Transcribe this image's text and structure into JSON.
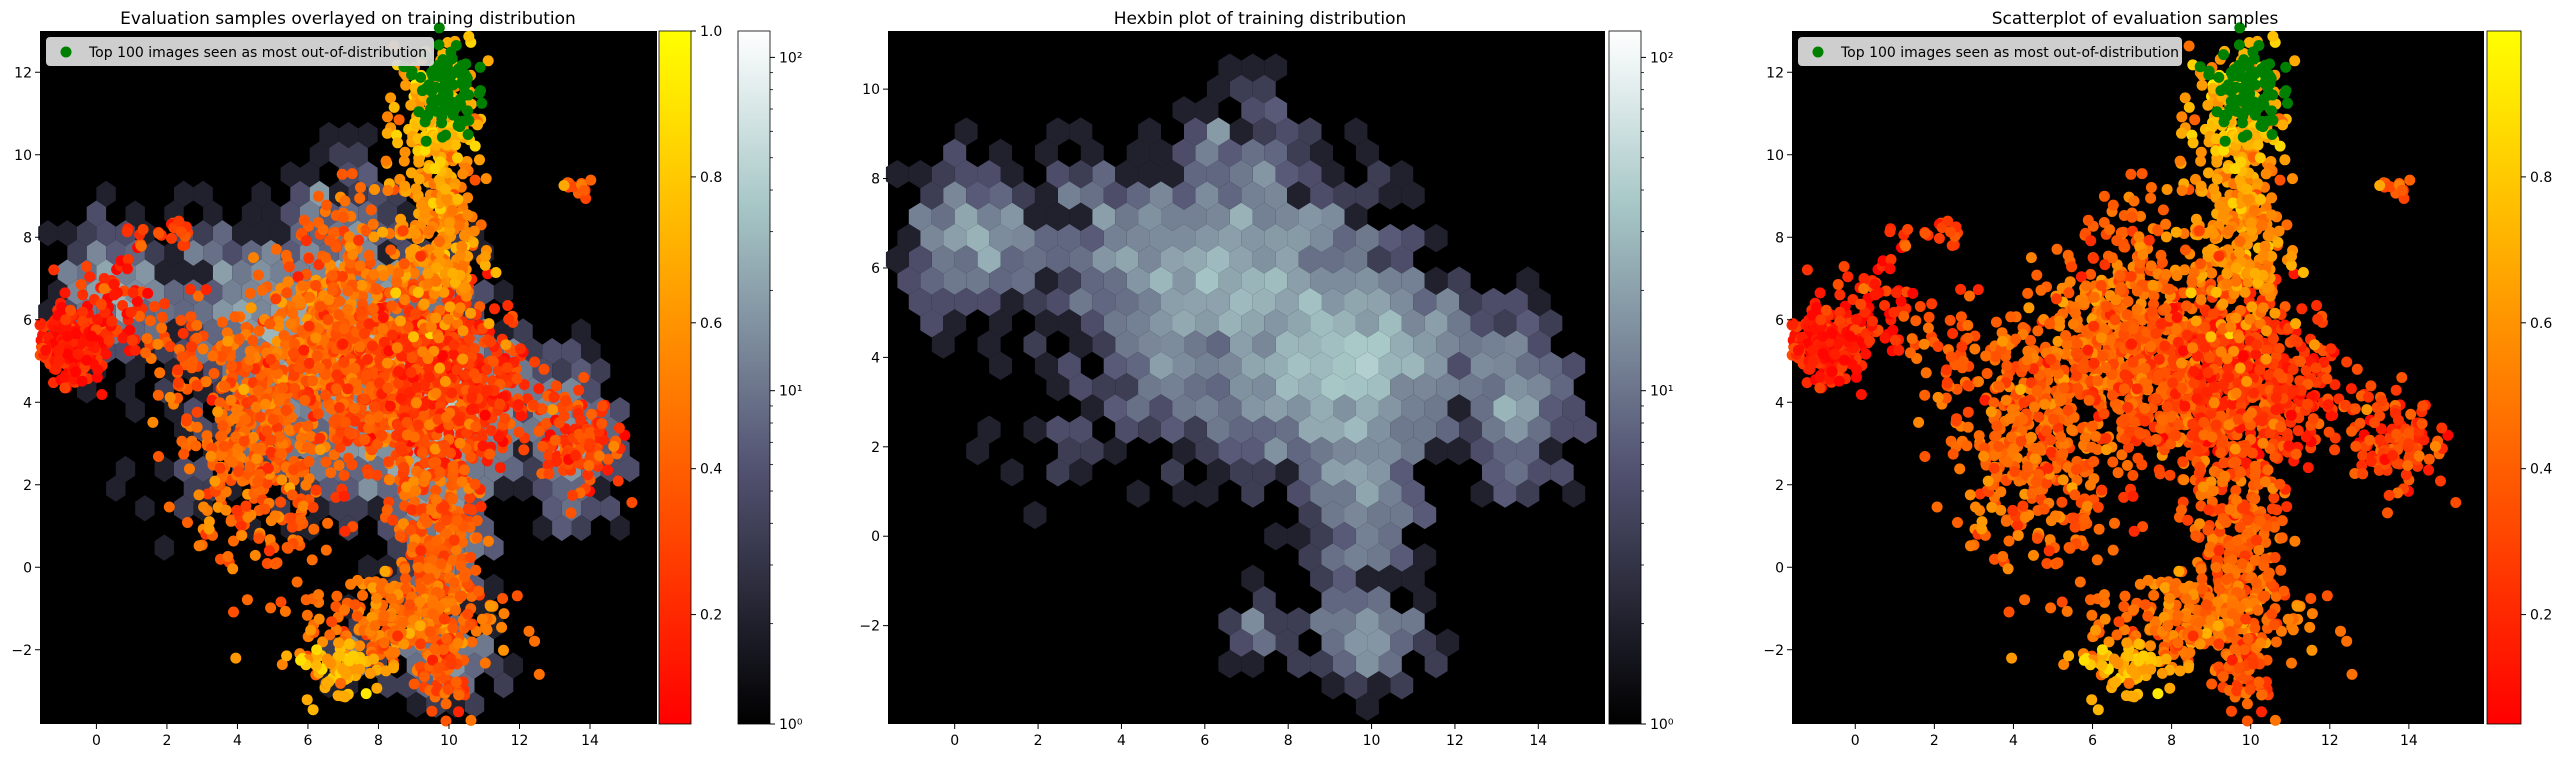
{
  "colors": {
    "background": "#000000",
    "ood_points": "#008000",
    "legend_box": "#d9d9d9",
    "autumn_low": "#ff0000",
    "autumn_high": "#ffff00",
    "bone_low": "#000000",
    "bone_high": "#ffffff"
  },
  "panels": [
    {
      "title": "Evaluation samples overlayed on training distribution"
    },
    {
      "title": "Hexbin plot of training distribution"
    },
    {
      "title": "Scatterplot of evaluation samples"
    }
  ],
  "legend": {
    "label": "Top 100 images seen as most out-of-distribution",
    "marker": "green-dot"
  },
  "chart_data": [
    {
      "type": "scatter",
      "title": "Evaluation samples overlayed on training distribution",
      "overlay": "hexbin",
      "xlim": [
        -1.6,
        15.9
      ],
      "ylim": [
        -3.8,
        13.0
      ],
      "xticks": [
        "0",
        "2",
        "4",
        "6",
        "8",
        "10",
        "12",
        "14"
      ],
      "yticks": [
        "−2",
        "0",
        "2",
        "4",
        "6",
        "8",
        "10",
        "12"
      ],
      "colorbars": [
        {
          "cmap": "autumn",
          "range": [
            0.05,
            1.0
          ],
          "ticks": [
            "0.2",
            "0.4",
            "0.6",
            "0.8",
            "1.0"
          ]
        },
        {
          "cmap": "bone",
          "scale": "log",
          "range": [
            1,
            120
          ],
          "ticks": [
            "10⁰",
            "10¹",
            "10²"
          ]
        }
      ],
      "legend": [
        "Top 100 images seen as most out-of-distribution"
      ],
      "legend_position": "upper-left"
    },
    {
      "type": "heatmap",
      "subtype": "hexbin",
      "title": "Hexbin plot of training distribution",
      "xlim": [
        -1.6,
        15.6
      ],
      "ylim": [
        -4.2,
        11.3
      ],
      "xticks": [
        "0",
        "2",
        "4",
        "6",
        "8",
        "10",
        "12",
        "14"
      ],
      "yticks": [
        "−2",
        "0",
        "2",
        "4",
        "6",
        "8",
        "10"
      ],
      "colorbar": {
        "cmap": "bone",
        "scale": "log",
        "range": [
          1,
          120
        ],
        "ticks": [
          "10⁰",
          "10¹",
          "10²"
        ]
      }
    },
    {
      "type": "scatter",
      "title": "Scatterplot of evaluation samples",
      "xlim": [
        -1.6,
        15.9
      ],
      "ylim": [
        -3.8,
        13.0
      ],
      "xticks": [
        "0",
        "2",
        "4",
        "6",
        "8",
        "10",
        "12",
        "14"
      ],
      "yticks": [
        "−2",
        "0",
        "2",
        "4",
        "6",
        "8",
        "10",
        "12"
      ],
      "colorbar": {
        "cmap": "autumn",
        "range": [
          0.05,
          1.0
        ],
        "ticks": [
          "0.2",
          "0.4",
          "0.6",
          "0.8"
        ]
      },
      "legend": [
        "Top 100 images seen as most out-of-distribution"
      ],
      "legend_position": "upper-left"
    }
  ],
  "clusters": [
    {
      "cx": -0.7,
      "cy": 5.4,
      "sx": 0.5,
      "sy": 0.4,
      "n": 300,
      "v": 0.1
    },
    {
      "cx": 0.5,
      "cy": 6.6,
      "sx": 0.6,
      "sy": 0.6,
      "n": 60,
      "v": 0.15
    },
    {
      "cx": 4.3,
      "cy": 3.0,
      "sx": 0.9,
      "sy": 1.3,
      "n": 350,
      "v": 0.38
    },
    {
      "cx": 6.5,
      "cy": 5.3,
      "sx": 1.2,
      "sy": 1.0,
      "n": 400,
      "v": 0.42
    },
    {
      "cx": 8.0,
      "cy": 4.5,
      "sx": 1.2,
      "sy": 1.3,
      "n": 450,
      "v": 0.3
    },
    {
      "cx": 10.2,
      "cy": 4.4,
      "sx": 1.1,
      "sy": 1.0,
      "n": 450,
      "v": 0.2
    },
    {
      "cx": 9.7,
      "cy": 8.5,
      "sx": 0.6,
      "sy": 1.8,
      "n": 350,
      "v": 0.55
    },
    {
      "cx": 9.6,
      "cy": 11.2,
      "sx": 0.5,
      "sy": 0.7,
      "n": 120,
      "v": 0.72
    },
    {
      "cx": 9.7,
      "cy": 1.0,
      "sx": 0.6,
      "sy": 1.3,
      "n": 250,
      "v": 0.35
    },
    {
      "cx": 8.6,
      "cy": -1.3,
      "sx": 1.4,
      "sy": 0.6,
      "n": 280,
      "v": 0.45
    },
    {
      "cx": 6.9,
      "cy": -2.5,
      "sx": 0.5,
      "sy": 0.4,
      "n": 60,
      "v": 0.7
    },
    {
      "cx": 9.9,
      "cy": -2.5,
      "sx": 0.4,
      "sy": 0.5,
      "n": 60,
      "v": 0.3
    },
    {
      "cx": 13.6,
      "cy": 3.1,
      "sx": 0.7,
      "sy": 0.6,
      "n": 120,
      "v": 0.25
    },
    {
      "cx": 13.6,
      "cy": 9.2,
      "sx": 0.3,
      "sy": 0.15,
      "n": 15,
      "v": 0.3
    },
    {
      "cx": 1.8,
      "cy": 8.0,
      "sx": 0.5,
      "sy": 0.2,
      "n": 20,
      "v": 0.25
    },
    {
      "cx": 2.6,
      "cy": 5.3,
      "sx": 0.8,
      "sy": 0.6,
      "n": 50,
      "v": 0.35
    },
    {
      "cx": 7.4,
      "cy": 7.8,
      "sx": 0.8,
      "sy": 0.8,
      "n": 80,
      "v": 0.4
    },
    {
      "cx": 5.5,
      "cy": 0.9,
      "sx": 0.5,
      "sy": 0.4,
      "n": 30,
      "v": 0.35
    }
  ],
  "hex_clusters": [
    {
      "cx": 0.5,
      "cy": 6.5,
      "sx": 0.8,
      "sy": 0.8,
      "n": 250
    },
    {
      "cx": 5.6,
      "cy": 5.8,
      "sx": 1.3,
      "sy": 1.2,
      "n": 600
    },
    {
      "cx": 9.8,
      "cy": 4.0,
      "sx": 1.4,
      "sy": 0.9,
      "n": 800
    },
    {
      "cx": 7.5,
      "cy": 6.3,
      "sx": 0.9,
      "sy": 1.5,
      "n": 300
    },
    {
      "cx": 8.4,
      "cy": 3.0,
      "sx": 1.5,
      "sy": 1.0,
      "n": 300
    },
    {
      "cx": 13.6,
      "cy": 3.0,
      "sx": 0.6,
      "sy": 1.0,
      "n": 200
    },
    {
      "cx": 9.8,
      "cy": 0.8,
      "sx": 0.7,
      "sy": 1.0,
      "n": 220
    },
    {
      "cx": 9.8,
      "cy": -2.2,
      "sx": 0.7,
      "sy": 0.5,
      "n": 130
    },
    {
      "cx": 3.0,
      "cy": 6.8,
      "sx": 0.8,
      "sy": 1.0,
      "n": 100
    },
    {
      "cx": 9.5,
      "cy": 6.2,
      "sx": 0.8,
      "sy": 1.0,
      "n": 120
    },
    {
      "cx": 6.5,
      "cy": 9.0,
      "sx": 0.6,
      "sy": 0.5,
      "n": 40
    },
    {
      "cx": 7.3,
      "cy": -2.0,
      "sx": 0.4,
      "sy": 0.4,
      "n": 30
    },
    {
      "cx": 2.5,
      "cy": 2.0,
      "sx": 0.8,
      "sy": 0.6,
      "n": 20
    },
    {
      "cx": 5.0,
      "cy": 3.5,
      "sx": 1.0,
      "sy": 1.0,
      "n": 120
    }
  ],
  "ood_cluster": {
    "cx": 9.9,
    "cy": 11.6,
    "sx": 0.4,
    "sy": 0.6,
    "n": 100
  }
}
